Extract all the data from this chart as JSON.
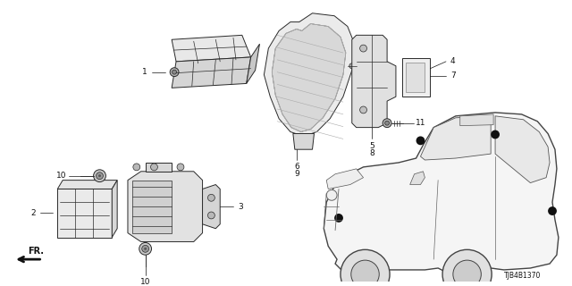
{
  "bg_color": "#ffffff",
  "diagram_color": "#2a2a2a",
  "label_color": "#111111",
  "ref_code": "TJB4B1370",
  "figsize": [
    6.4,
    3.2
  ],
  "dpi": 100,
  "lw_main": 0.7,
  "lw_detail": 0.5
}
